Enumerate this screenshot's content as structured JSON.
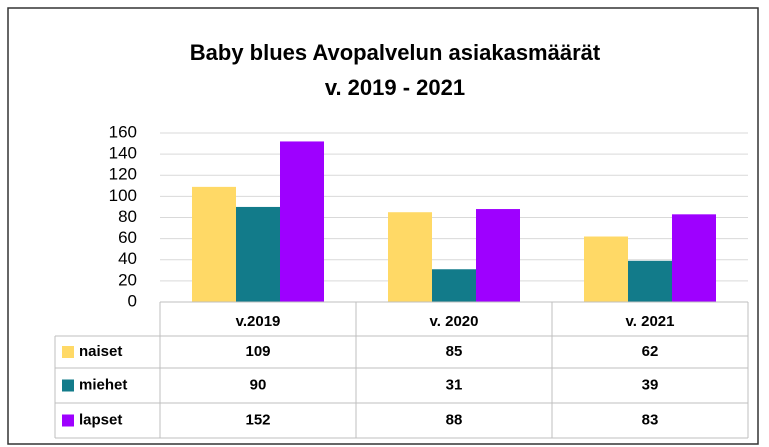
{
  "chart_data": {
    "type": "bar",
    "title": "Baby blues Avopalvelun asiakasmäärät",
    "subtitle": "v. 2019 - 2021",
    "categories": [
      "v.2019",
      "v. 2020",
      "v. 2021"
    ],
    "series": [
      {
        "name": "naiset",
        "color": "#ffd966",
        "values": [
          109,
          85,
          62
        ]
      },
      {
        "name": "miehet",
        "color": "#127b8a",
        "values": [
          90,
          31,
          39
        ]
      },
      {
        "name": "lapset",
        "color": "#9e00ff",
        "values": [
          152,
          88,
          83
        ]
      }
    ],
    "ylim": [
      0,
      160
    ],
    "yticks": [
      0,
      20,
      40,
      60,
      80,
      100,
      120,
      140,
      160
    ],
    "grid": true
  }
}
